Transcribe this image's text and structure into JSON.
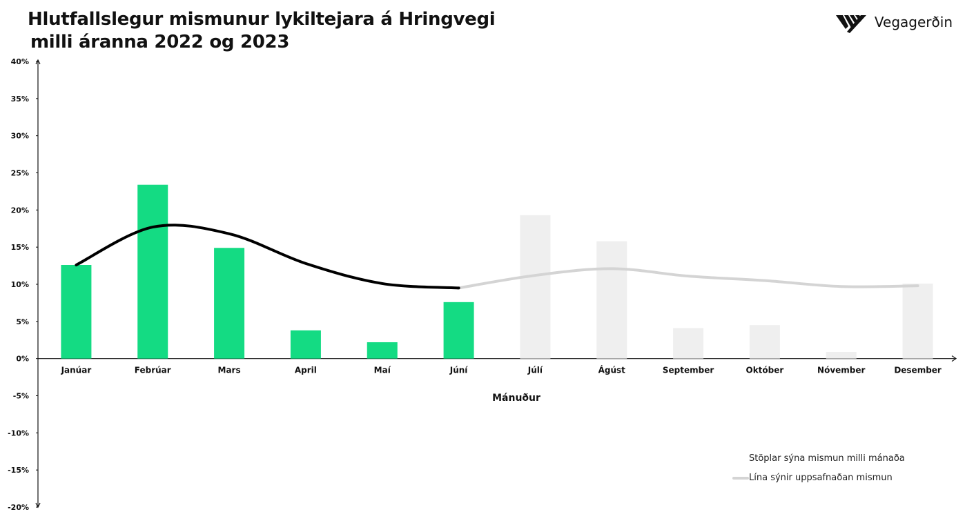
{
  "title_line1": "Hlutfallslegur mismunur lykiltejara á Hringvegi",
  "title_line2": "milli áranna 2022 og 2023",
  "logo_text": "Vegagerðin",
  "notes": {
    "bars": "Stöplar sýna mismun milli mánaða",
    "line": "Lína sýnir uppsafnaðan mismun"
  },
  "colors": {
    "bar_actual": "#14db83",
    "bar_prev": "#efefef",
    "line_actual": "#000000",
    "line_prev": "#d4d4d4"
  },
  "chart_data": {
    "type": "bar",
    "xlabel": "Mánuður",
    "ylabel": "",
    "ylim": [
      -0.2,
      0.4
    ],
    "yticks": [
      -0.2,
      -0.15,
      -0.1,
      -0.05,
      0,
      0.05,
      0.1,
      0.15,
      0.2,
      0.25,
      0.3,
      0.35,
      0.4
    ],
    "ytick_labels": [
      "-20%",
      "-15%",
      "-10%",
      "-5%",
      "0%",
      "5%",
      "10%",
      "15%",
      "20%",
      "25%",
      "30%",
      "35%",
      "40%"
    ],
    "categories": [
      "Janúar",
      "Febrúar",
      "Mars",
      "April",
      "Maí",
      "Júní",
      "Júlí",
      "Ágúst",
      "September",
      "Október",
      "Nóvember",
      "Desember"
    ],
    "series": [
      {
        "name": "Stöplar sýna mismun milli mánaða",
        "kind": "bar",
        "values": [
          0.126,
          0.234,
          0.149,
          0.038,
          0.022,
          0.076,
          0.193,
          0.158,
          0.041,
          0.045,
          0.009,
          0.101
        ],
        "highlighted_count": 6
      },
      {
        "name": "Lína sýnir uppsafnaðan mismun",
        "kind": "line",
        "values": [
          0.126,
          0.177,
          0.168,
          0.128,
          0.101,
          0.095,
          0.112,
          0.121,
          0.111,
          0.105,
          0.097,
          0.098
        ],
        "highlighted_count": 6
      }
    ],
    "grid": false,
    "legend": "bottom-right"
  }
}
